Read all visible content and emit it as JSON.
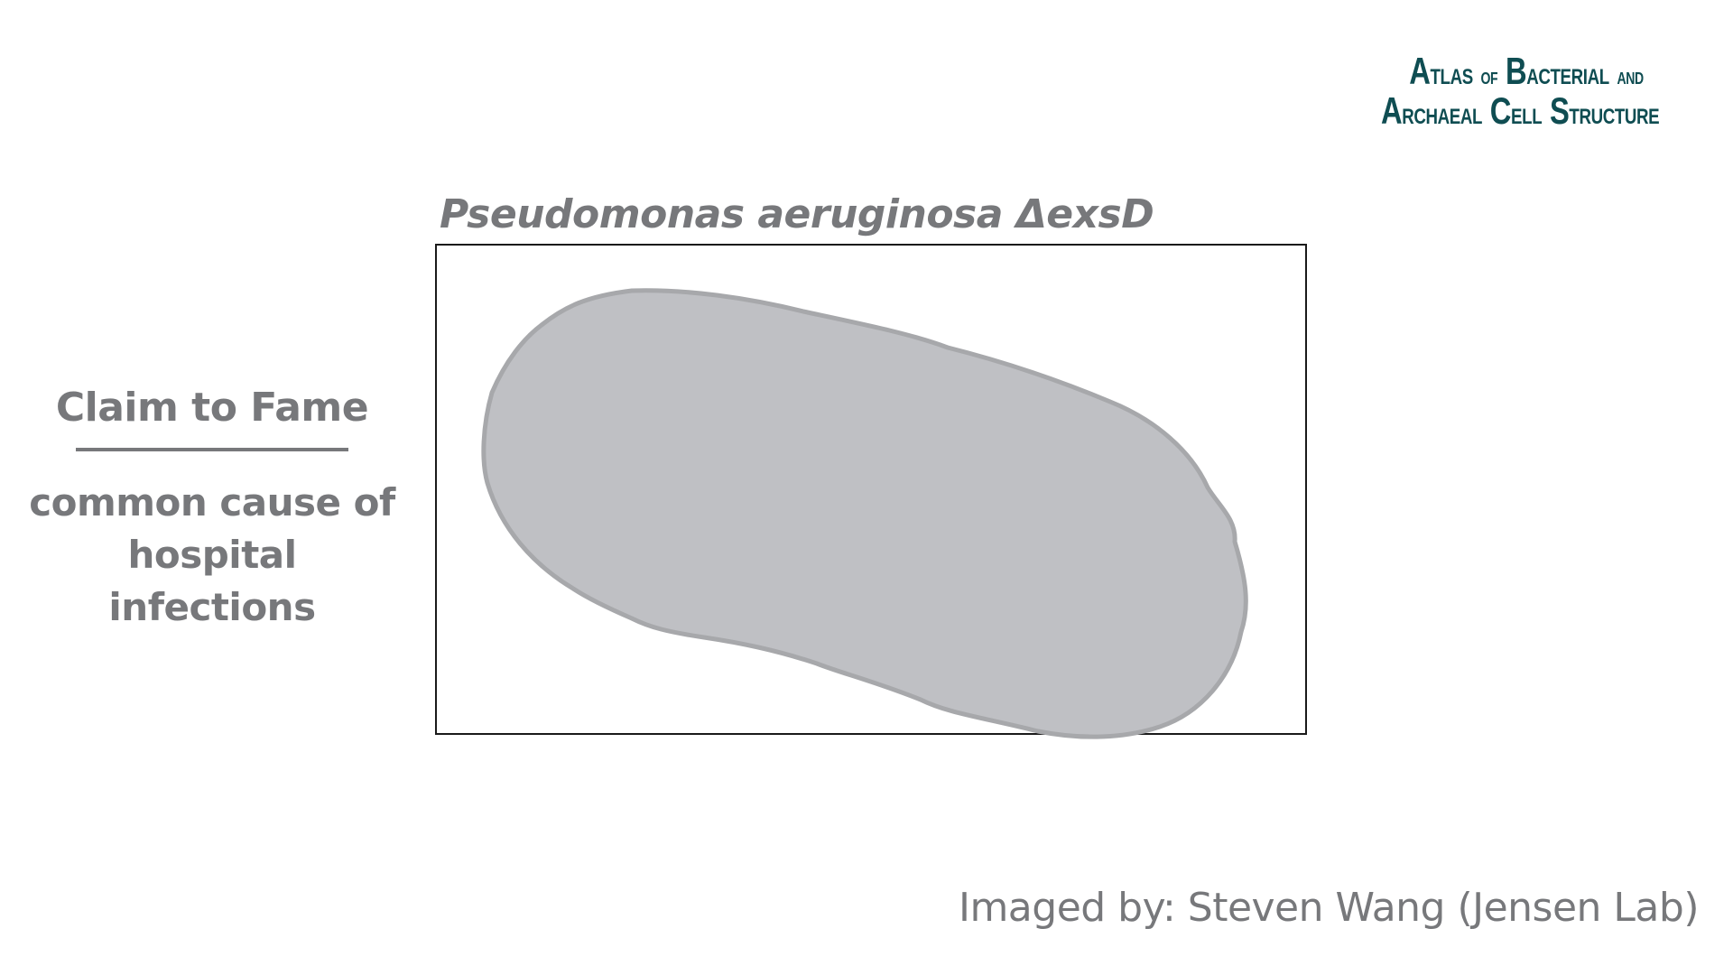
{
  "logo": {
    "line1_big": "A",
    "line1_rest": "TLAS",
    "line1_of": "OF",
    "line1_b": "B",
    "line1_bact": "ACTERIAL",
    "line1_and": "AND",
    "line2_a": "A",
    "line2_rch": "RCHAEAL",
    "line2_c": "C",
    "line2_ell": "ELL",
    "line2_s": "S",
    "line2_tructure": "TRUCTURE"
  },
  "species_title": "Pseudomonas aeruginosa ΔexsD",
  "claim": {
    "heading": "Claim to Fame",
    "body_line1": "common cause of",
    "body_line2": "hospital infections"
  },
  "credit": "Imaged by: Steven Wang (Jensen Lab)",
  "colors": {
    "text_gray": "#77787b",
    "logo_teal": "#0f4d52",
    "cell_fill": "#bfc0c4",
    "cell_outline": "#a7a8ab",
    "frame": "#1a1a1a"
  }
}
